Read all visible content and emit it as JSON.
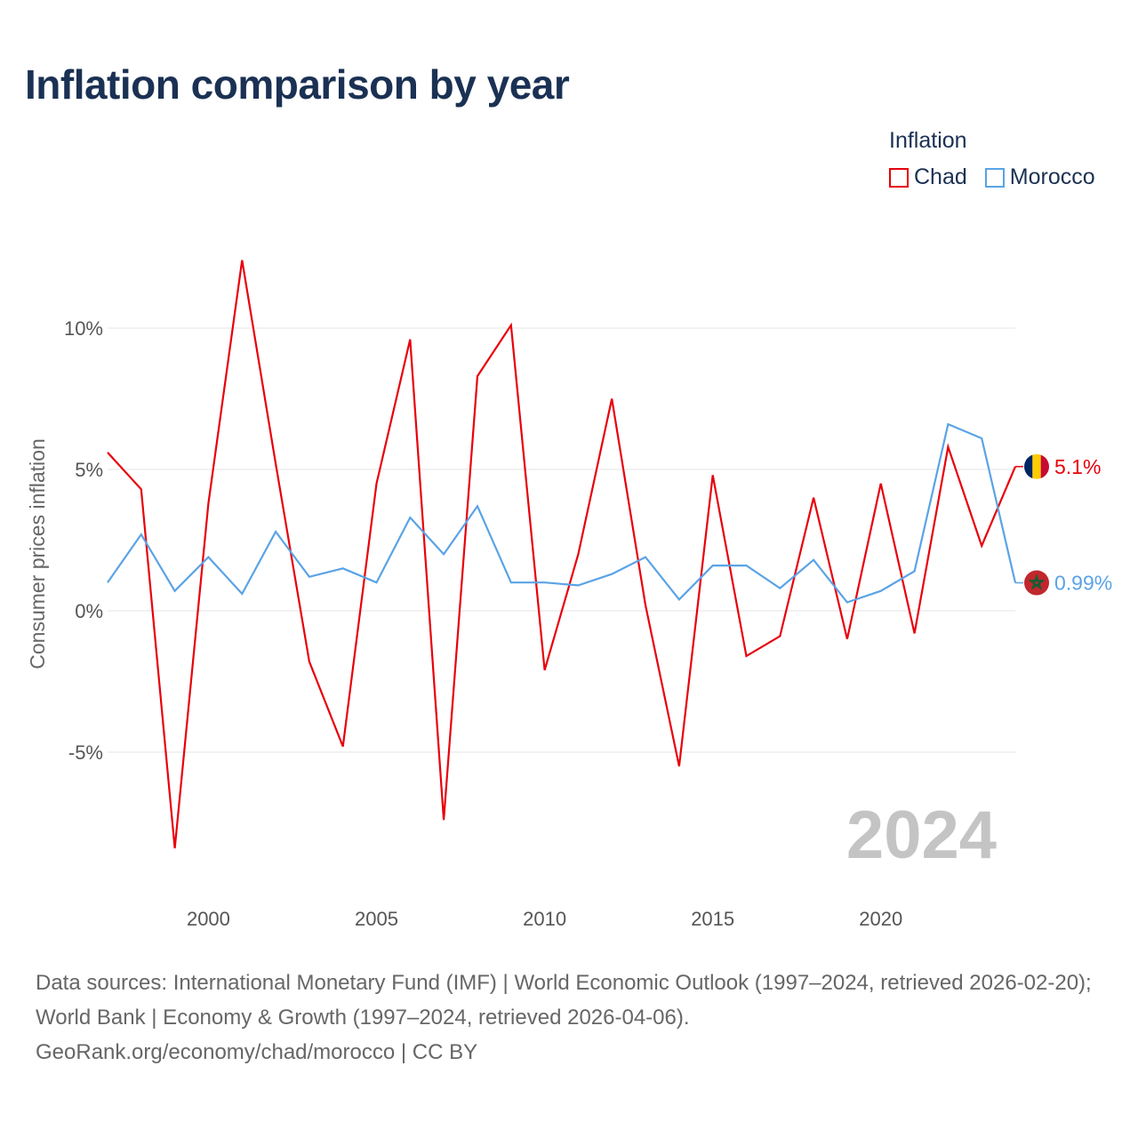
{
  "title": "Inflation comparison by year",
  "legend": {
    "title": "Inflation",
    "items": [
      {
        "label": "Chad",
        "color": "#e8000b"
      },
      {
        "label": "Morocco",
        "color": "#5aa3e6"
      }
    ]
  },
  "chart_data": {
    "type": "line",
    "title": "Inflation comparison by year",
    "xlabel": "",
    "ylabel": "Consumer prices inflation",
    "xlim": [
      1997,
      2024
    ],
    "ylim": [
      -9.7,
      16
    ],
    "x_ticks": [
      2000,
      2005,
      2010,
      2015,
      2020
    ],
    "y_ticks": [
      -5,
      0,
      5,
      10
    ],
    "y_tick_labels": [
      "-5%",
      "0%",
      "5%",
      "10%"
    ],
    "grid": true,
    "legend_position": "top-right",
    "current_year_label": "2024",
    "x": [
      1997,
      1998,
      1999,
      2000,
      2001,
      2002,
      2003,
      2004,
      2005,
      2006,
      2007,
      2008,
      2009,
      2010,
      2011,
      2012,
      2013,
      2014,
      2015,
      2016,
      2017,
      2018,
      2019,
      2020,
      2021,
      2022,
      2023,
      2024
    ],
    "series": [
      {
        "name": "Chad",
        "color": "#e8000b",
        "end_label": "5.1%",
        "flag": "chad-flag",
        "values": [
          5.6,
          4.3,
          -8.4,
          3.8,
          12.4,
          5.2,
          -1.8,
          -4.8,
          4.5,
          9.6,
          -7.4,
          8.3,
          10.1,
          -2.1,
          2.0,
          7.5,
          0.2,
          -5.5,
          4.8,
          -1.6,
          -0.9,
          4.0,
          -1.0,
          4.5,
          -0.8,
          5.8,
          2.3,
          5.1
        ]
      },
      {
        "name": "Morocco",
        "color": "#5aa3e6",
        "end_label": "0.99%",
        "flag": "morocco-flag",
        "values": [
          1.0,
          2.7,
          0.7,
          1.9,
          0.6,
          2.8,
          1.2,
          1.5,
          1.0,
          3.3,
          2.0,
          3.7,
          1.0,
          1.0,
          0.9,
          1.3,
          1.9,
          0.4,
          1.6,
          1.6,
          0.8,
          1.8,
          0.3,
          0.7,
          1.4,
          6.6,
          6.1,
          0.99
        ]
      }
    ]
  },
  "source": {
    "line1": "Data sources: International Monetary Fund (IMF) | World Economic Outlook (1997–2024, retrieved 2026-02-20); World Bank | Economy & Growth (1997–2024, retrieved 2026-04-06).",
    "line2": "GeoRank.org/economy/chad/morocco | CC BY"
  }
}
